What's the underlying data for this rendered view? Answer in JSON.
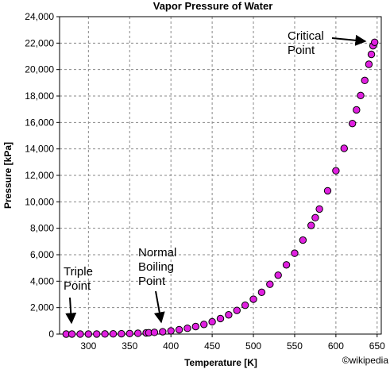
{
  "chart_data": {
    "type": "scatter",
    "title": "Vapor Pressure of Water",
    "xlabel": "Temperature [K]",
    "ylabel": "Pressure [kPa]",
    "xlim": [
      265,
      655
    ],
    "ylim": [
      0,
      24000
    ],
    "x_ticks": [
      "300",
      "350",
      "400",
      "450",
      "500",
      "550",
      "600",
      "650"
    ],
    "y_ticks": [
      "0",
      "2,000",
      "4,000",
      "6,000",
      "8,000",
      "10,000",
      "12,000",
      "14,000",
      "16,000",
      "18,000",
      "20,000",
      "22,000",
      "24,000"
    ],
    "grid": true,
    "marker_color": "#e020e0",
    "marker_edge_color": "#000000",
    "points": [
      [
        273,
        0.6
      ],
      [
        280,
        1.0
      ],
      [
        290,
        1.9
      ],
      [
        300,
        3.5
      ],
      [
        310,
        6.2
      ],
      [
        320,
        10.5
      ],
      [
        330,
        17.2
      ],
      [
        340,
        27.2
      ],
      [
        350,
        41.7
      ],
      [
        360,
        62.2
      ],
      [
        370,
        90.4
      ],
      [
        373.15,
        101.3
      ],
      [
        380,
        128.6
      ],
      [
        390,
        179
      ],
      [
        400,
        245
      ],
      [
        410,
        330
      ],
      [
        420,
        437
      ],
      [
        430,
        570
      ],
      [
        440,
        733
      ],
      [
        450,
        932
      ],
      [
        460,
        1171
      ],
      [
        470,
        1455
      ],
      [
        480,
        1790
      ],
      [
        490,
        2181
      ],
      [
        500,
        2637
      ],
      [
        510,
        3163
      ],
      [
        520,
        3766
      ],
      [
        530,
        4454
      ],
      [
        540,
        5234
      ],
      [
        550,
        6115
      ],
      [
        560,
        7106
      ],
      [
        570,
        8216
      ],
      [
        575,
        8800
      ],
      [
        580,
        9456
      ],
      [
        590,
        10835
      ],
      [
        600,
        12347
      ],
      [
        610,
        14041
      ],
      [
        620,
        15920
      ],
      [
        625,
        16950
      ],
      [
        630,
        18041
      ],
      [
        635,
        19180
      ],
      [
        640,
        20400
      ],
      [
        643,
        21150
      ],
      [
        645,
        21800
      ],
      [
        647,
        22064
      ]
    ],
    "annotations": [
      {
        "lines": [
          "Triple",
          "Point"
        ],
        "point": [
          273,
          0.6
        ]
      },
      {
        "lines": [
          "Normal",
          "Boiling",
          "Point"
        ],
        "point": [
          383,
          200
        ]
      },
      {
        "lines": [
          "Critical",
          "Point"
        ],
        "point": [
          647,
          22064
        ]
      }
    ],
    "credit": "©wikipedia"
  }
}
